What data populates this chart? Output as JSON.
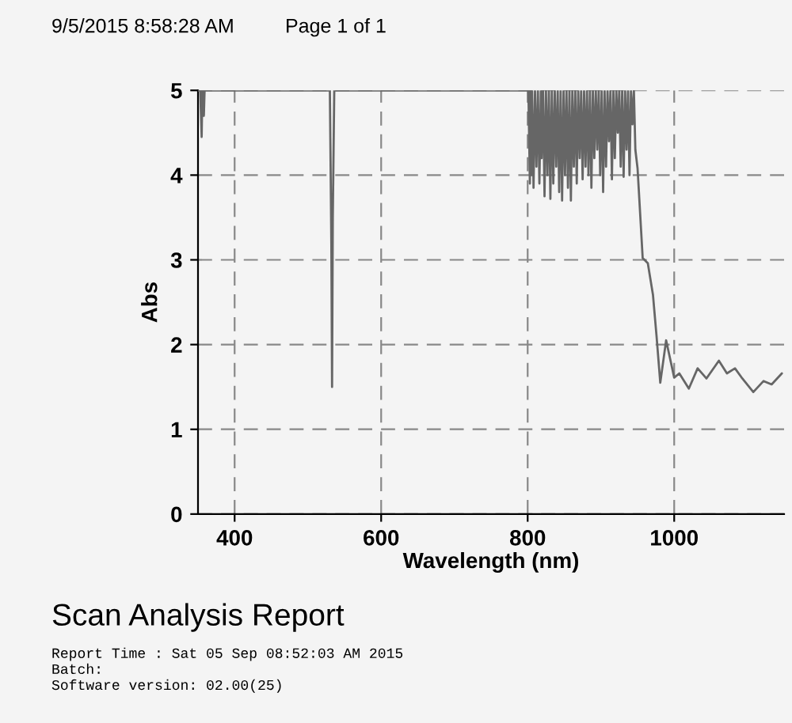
{
  "chart_data": {
    "type": "line",
    "title": "Scan Analysis Report",
    "xlabel": "Wavelength (nm)",
    "ylabel": "Abs",
    "annotations": [
      "9/5/2015 8:58:28 AM",
      "Page 1 of 1",
      "Report Time : Sat 05 Sep 08:52:03 AM 2015",
      "Batch:",
      "Software version: 02.00(25)"
    ],
    "series": [
      {
        "color": "#666666",
        "x": [
          350,
          353,
          355,
          356,
          358,
          359,
          361,
          530,
          532,
          533,
          534,
          536,
          801,
          803,
          804,
          805,
          806,
          808,
          810,
          812,
          814,
          816,
          818,
          819,
          821,
          823,
          825,
          827,
          829,
          831,
          833,
          835,
          837,
          839,
          841,
          843,
          845,
          847,
          849,
          851,
          853,
          855,
          857,
          859,
          861,
          863,
          865,
          867,
          869,
          871,
          873,
          875,
          877,
          879,
          881,
          883,
          885,
          887,
          889,
          891,
          893,
          895,
          897,
          899,
          901,
          903,
          905,
          907,
          909,
          911,
          913,
          915,
          917,
          919,
          921,
          923,
          925,
          927,
          929,
          931,
          933,
          935,
          937,
          939,
          941,
          943,
          945,
          947,
          950,
          957,
          964,
          971,
          976,
          981,
          989,
          1000,
          1007,
          1020,
          1032,
          1044,
          1061,
          1072,
          1083,
          1093,
          1108,
          1122,
          1133,
          1147
        ],
        "values": [
          5,
          5,
          4.45,
          5,
          4.7,
          5,
          5,
          5,
          3.2,
          1.5,
          3.5,
          5,
          5,
          3.9,
          5,
          4.0,
          5,
          3.85,
          5,
          4.1,
          5,
          3.9,
          5,
          4.2,
          5,
          3.75,
          5,
          4.0,
          5,
          3.72,
          5,
          3.9,
          5,
          4.1,
          5,
          3.8,
          5,
          3.7,
          5,
          4.0,
          5,
          3.85,
          5,
          3.7,
          5,
          4.1,
          5,
          3.9,
          5,
          4.2,
          5,
          3.95,
          5,
          4.1,
          5,
          4.0,
          5,
          3.85,
          5,
          4.2,
          5,
          4.3,
          5,
          4.0,
          5,
          3.8,
          5,
          4.1,
          5,
          4.4,
          5,
          3.95,
          5,
          4.2,
          5,
          4.5,
          5,
          4.1,
          5,
          3.98,
          5,
          4.3,
          5,
          4.0,
          5,
          4.6,
          5,
          4.3,
          4.08,
          3.02,
          2.96,
          2.59,
          2.09,
          1.55,
          2.05,
          1.61,
          1.66,
          1.48,
          1.72,
          1.6,
          1.81,
          1.66,
          1.72,
          1.6,
          1.44,
          1.57,
          1.53,
          1.66
        ]
      }
    ],
    "xlim": [
      350,
      1150
    ],
    "ylim": [
      0,
      5
    ],
    "xticks": [
      400,
      600,
      800,
      1000
    ],
    "yticks": [
      0,
      1,
      2,
      3,
      4,
      5
    ],
    "grid": true,
    "marker": "none",
    "line_style": "solid"
  }
}
